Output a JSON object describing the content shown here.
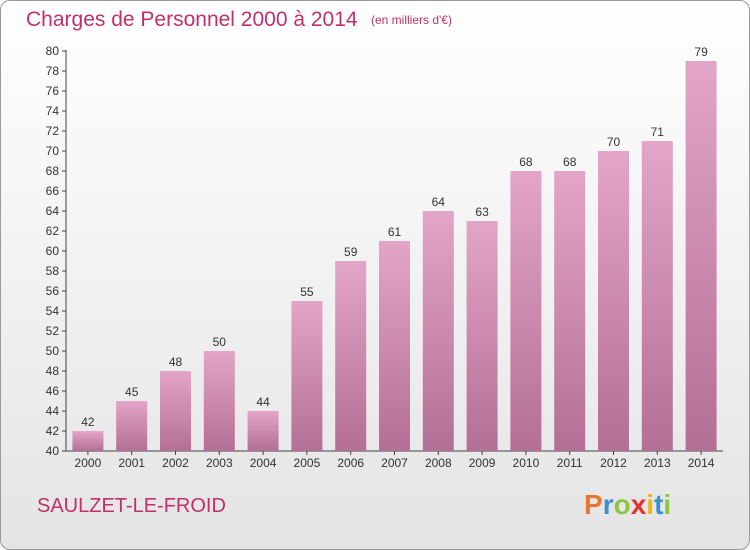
{
  "title": "Charges de Personnel 2000 à 2014",
  "subtitle": "(en milliers d'€)",
  "commune": "SAULZET-LE-FROID",
  "logo": {
    "letters": [
      "P",
      "r",
      "o",
      "x",
      "i",
      "t",
      "i"
    ],
    "colors": [
      "#e8762d",
      "#3a8fd0",
      "#8dc63f",
      "#e5322f",
      "#f2b518",
      "#3a8fd0",
      "#8dc63f"
    ]
  },
  "colors": {
    "accent": "#c0306a",
    "bar_top": "#e3a5c8",
    "bar_bottom": "#b36f95"
  },
  "chart_data": {
    "type": "bar",
    "categories": [
      "2000",
      "2001",
      "2002",
      "2003",
      "2004",
      "2005",
      "2006",
      "2007",
      "2008",
      "2009",
      "2010",
      "2011",
      "2012",
      "2013",
      "2014"
    ],
    "values": [
      42,
      45,
      48,
      50,
      44,
      55,
      59,
      61,
      64,
      63,
      68,
      68,
      70,
      71,
      79
    ],
    "ylim": [
      40,
      80
    ],
    "ytick_step": 2,
    "grid": false
  }
}
